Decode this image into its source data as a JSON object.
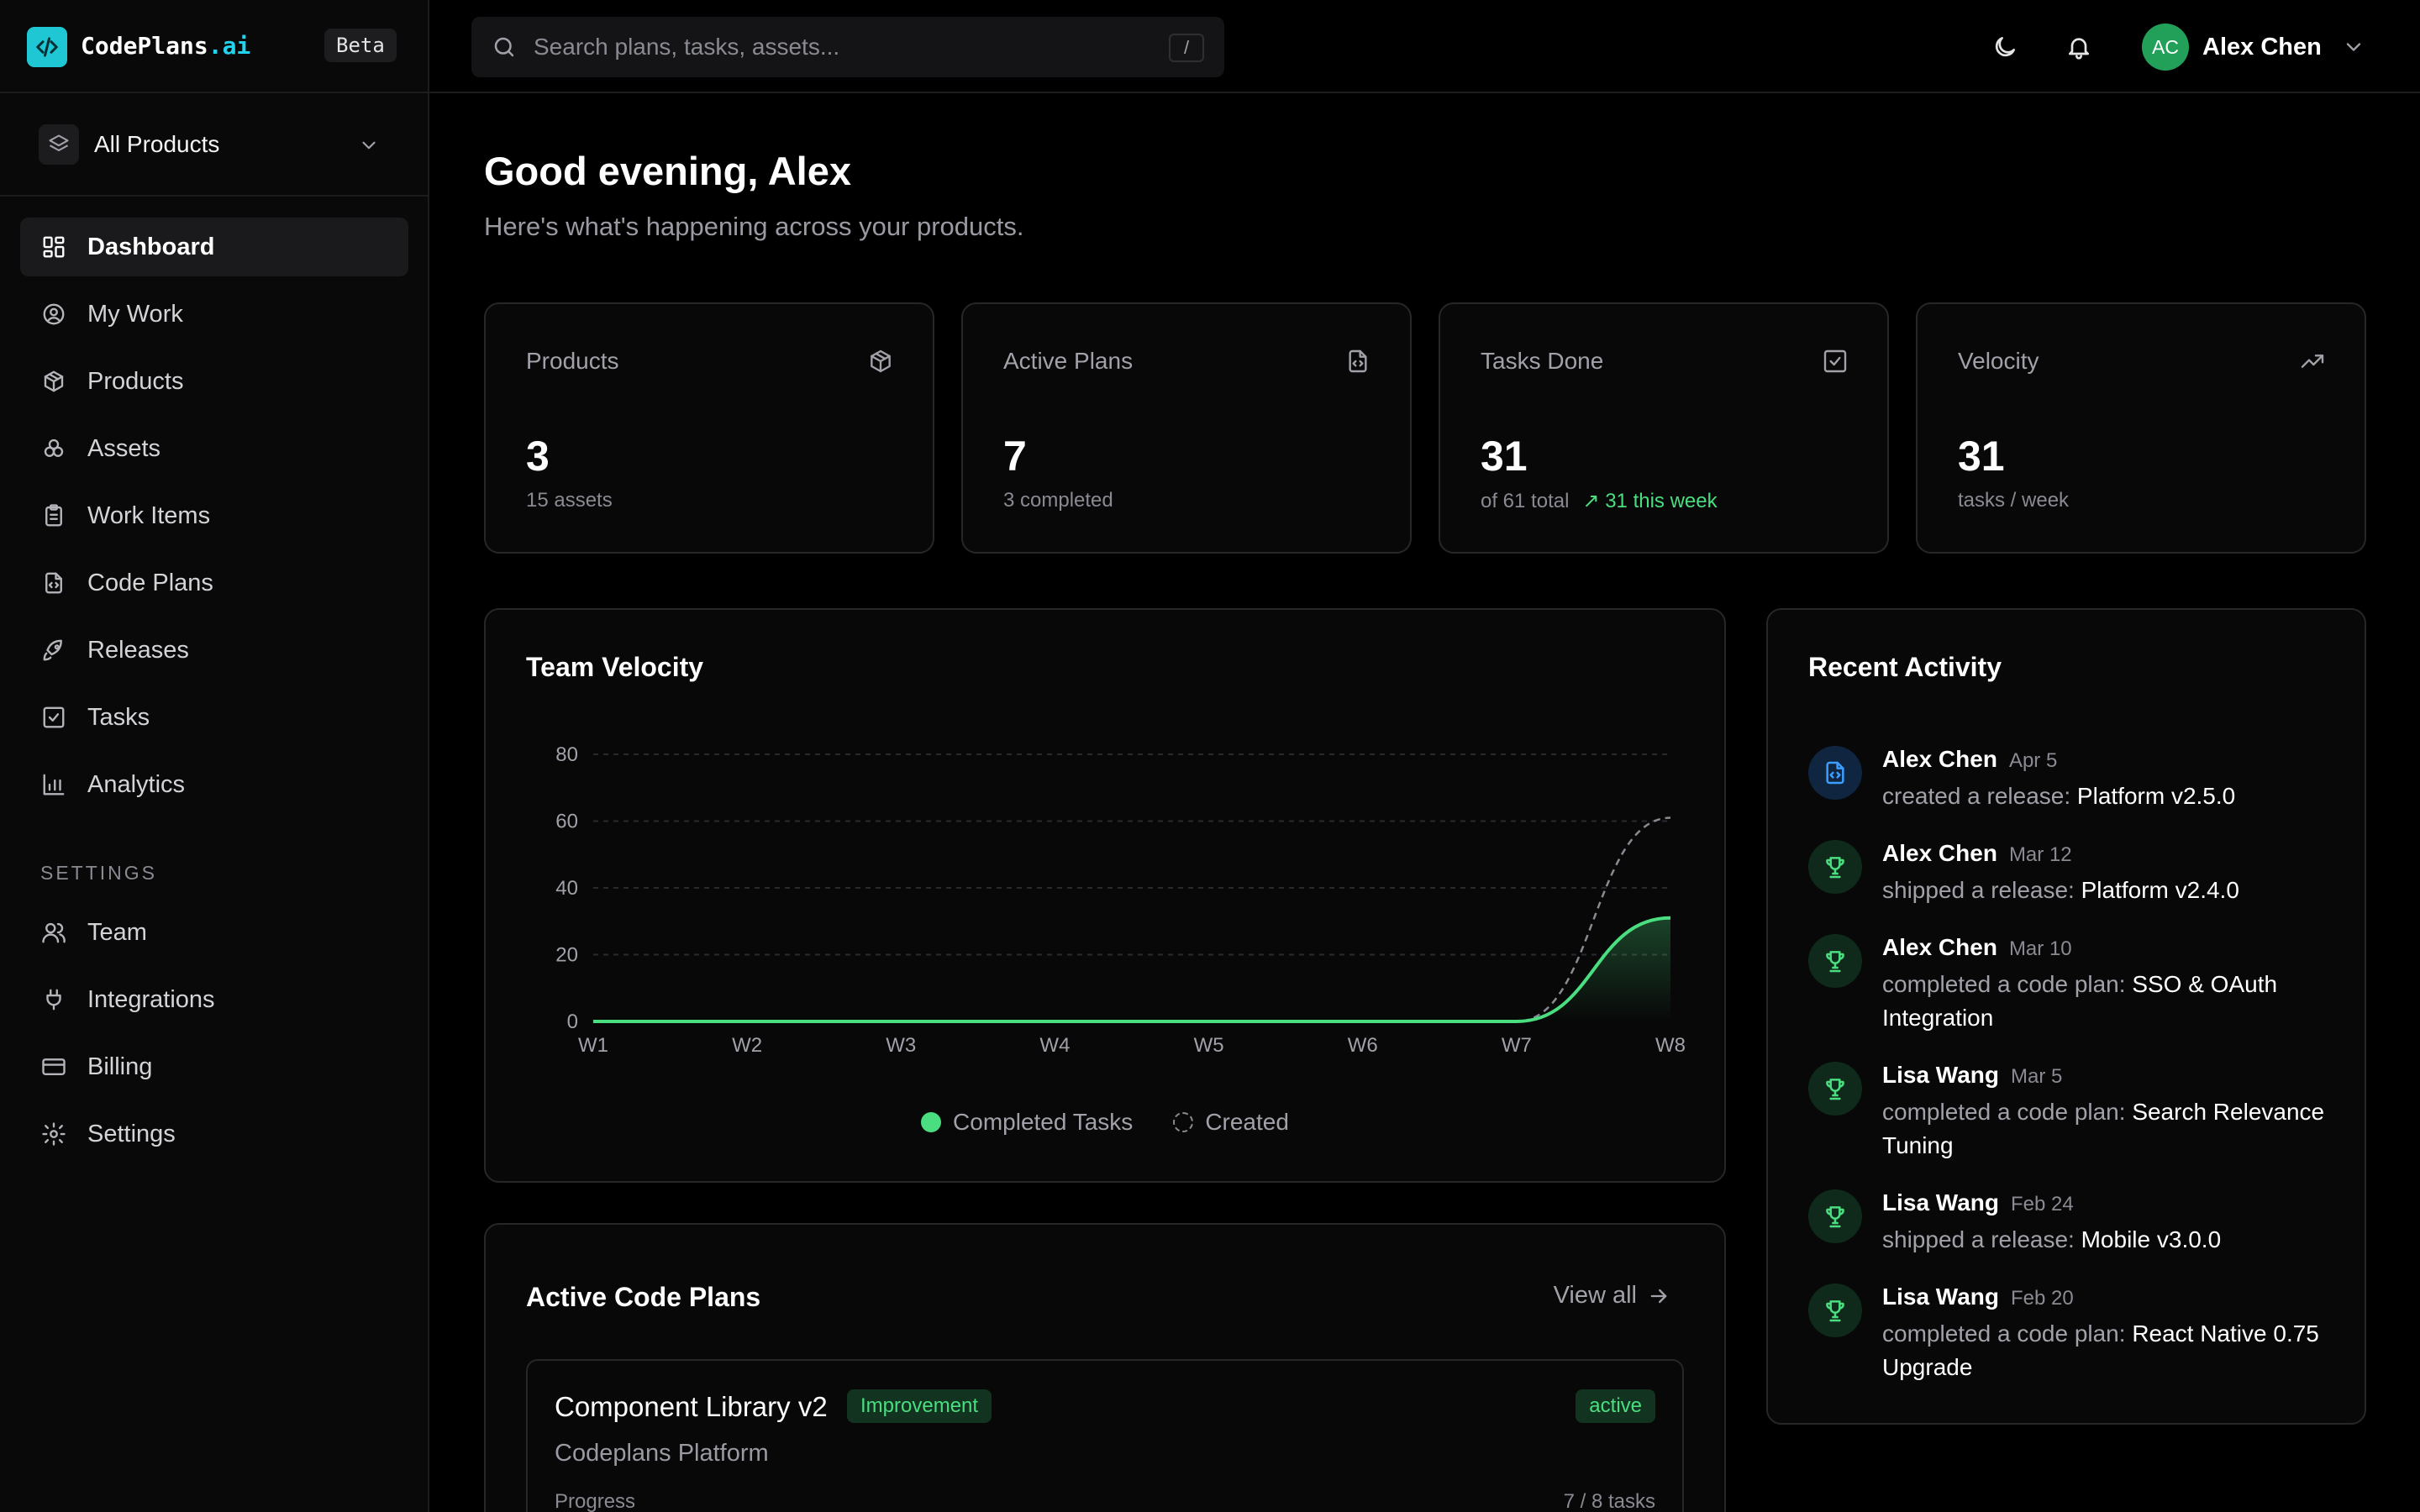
{
  "brand": {
    "name": "CodePlans",
    "suffix": ".ai",
    "beta": "Beta"
  },
  "product_switcher": {
    "label": "All Products"
  },
  "nav": [
    {
      "label": "Dashboard",
      "icon": "dashboard-icon",
      "active": true
    },
    {
      "label": "My Work",
      "icon": "user-circle-icon"
    },
    {
      "label": "Products",
      "icon": "package-icon"
    },
    {
      "label": "Assets",
      "icon": "boxes-icon"
    },
    {
      "label": "Work Items",
      "icon": "clipboard-icon"
    },
    {
      "label": "Code Plans",
      "icon": "file-code-icon"
    },
    {
      "label": "Releases",
      "icon": "rocket-icon"
    },
    {
      "label": "Tasks",
      "icon": "check-square-icon"
    },
    {
      "label": "Analytics",
      "icon": "bar-chart-icon"
    }
  ],
  "settings_heading": "SETTINGS",
  "settings_nav": [
    {
      "label": "Team",
      "icon": "users-icon"
    },
    {
      "label": "Integrations",
      "icon": "plug-icon"
    },
    {
      "label": "Billing",
      "icon": "credit-card-icon"
    },
    {
      "label": "Settings",
      "icon": "gear-icon"
    }
  ],
  "search": {
    "placeholder": "Search plans, tasks, assets...",
    "shortcut": "/"
  },
  "user": {
    "initials": "AC",
    "name": "Alex Chen"
  },
  "greeting": {
    "title": "Good evening, Alex",
    "subtitle": "Here's what's happening across your products."
  },
  "stats": [
    {
      "title": "Products",
      "value": "3",
      "sub": "15 assets",
      "icon": "package-icon"
    },
    {
      "title": "Active Plans",
      "value": "7",
      "sub": "3 completed",
      "icon": "file-code-icon"
    },
    {
      "title": "Tasks Done",
      "value": "31",
      "sub": "of 61 total",
      "trend": "31 this week",
      "icon": "check-square-icon"
    },
    {
      "title": "Velocity",
      "value": "31",
      "sub": "tasks / week",
      "icon": "trending-up-icon"
    }
  ],
  "velocity": {
    "title": "Team Velocity"
  },
  "chart_data": {
    "type": "area",
    "title": "Team Velocity",
    "x": [
      "W1",
      "W2",
      "W3",
      "W4",
      "W5",
      "W6",
      "W7",
      "W8"
    ],
    "yticks": [
      0,
      20,
      40,
      60,
      80
    ],
    "ylim": [
      0,
      80
    ],
    "grid": true,
    "legend": "bottom",
    "series": [
      {
        "name": "Completed Tasks",
        "values": [
          0,
          0,
          0,
          0,
          0,
          0,
          0,
          31
        ],
        "color": "#4ade80",
        "style": "solid"
      },
      {
        "name": "Created",
        "values": [
          0,
          0,
          0,
          0,
          0,
          0,
          0,
          61
        ],
        "color": "#8a8a93",
        "style": "dashed"
      }
    ]
  },
  "activity": {
    "title": "Recent Activity",
    "items": [
      {
        "user": "Alex Chen",
        "date": "Apr 5",
        "action": "created a release:",
        "target": "Platform v2.5.0",
        "icon": "file-code-icon",
        "tone": "blue"
      },
      {
        "user": "Alex Chen",
        "date": "Mar 12",
        "action": "shipped a release:",
        "target": "Platform v2.4.0",
        "icon": "trophy-icon",
        "tone": "green"
      },
      {
        "user": "Alex Chen",
        "date": "Mar 10",
        "action": "completed a code plan:",
        "target": "SSO & OAuth Integration",
        "icon": "trophy-icon",
        "tone": "green"
      },
      {
        "user": "Lisa Wang",
        "date": "Mar 5",
        "action": "completed a code plan:",
        "target": "Search Relevance Tuning",
        "icon": "trophy-icon",
        "tone": "green"
      },
      {
        "user": "Lisa Wang",
        "date": "Feb 24",
        "action": "shipped a release:",
        "target": "Mobile v3.0.0",
        "icon": "trophy-icon",
        "tone": "green"
      },
      {
        "user": "Lisa Wang",
        "date": "Feb 20",
        "action": "completed a code plan:",
        "target": "React Native 0.75 Upgrade",
        "icon": "trophy-icon",
        "tone": "green"
      }
    ]
  },
  "plans": {
    "title": "Active Code Plans",
    "view_all": "View all",
    "items": [
      {
        "name": "Component Library v2",
        "tag": "Improvement",
        "status": "active",
        "product": "Codeplans Platform",
        "progress_label": "Progress",
        "progress_count": "7 / 8 tasks",
        "progress": 0.875
      }
    ]
  },
  "colors": {
    "accent": "#22d3ee",
    "success": "#4ade80",
    "background": "#000000"
  }
}
